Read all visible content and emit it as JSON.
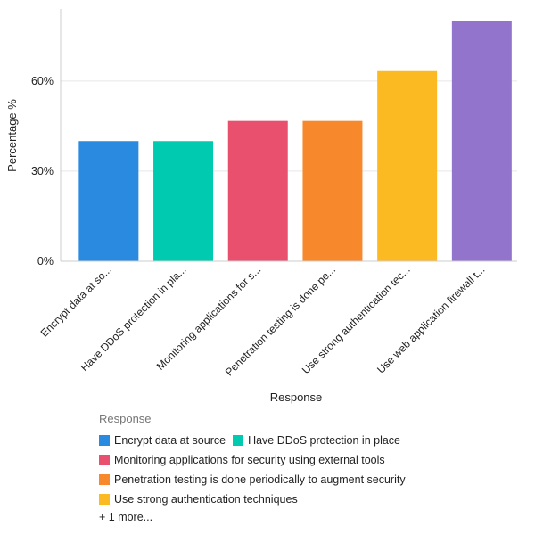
{
  "chart_data": {
    "type": "bar",
    "categories": [
      "Encrypt data at source",
      "Have DDoS protection in place",
      "Monitoring applications for security using external tools",
      "Penetration testing is done periodically to augment security",
      "Use strong authentication techniques",
      "Use web application firewall tools"
    ],
    "tick_labels": [
      "Encrypt data at so...",
      "Have DDoS protection in pla...",
      "Monitoring applications for s...",
      "Penetration testing is done pe...",
      "Use strong authentication tec...",
      "Use web application firewall t..."
    ],
    "values": [
      40,
      40,
      46.7,
      46.7,
      63.3,
      80
    ],
    "colors": [
      "#2a8ae0",
      "#00cbb0",
      "#e8506e",
      "#f8882c",
      "#fcba22",
      "#9374cc"
    ],
    "xlabel": "Response",
    "ylabel": "Percentage %",
    "ylim": [
      0,
      84
    ],
    "yticks": [
      0,
      30,
      60
    ],
    "ytick_labels": [
      "0%",
      "30%",
      "60%"
    ],
    "grid": true,
    "legend": {
      "title": "Response",
      "placement": "bottom",
      "rows": [
        [
          0,
          1
        ],
        [
          2
        ],
        [
          3
        ],
        [
          4
        ]
      ],
      "more": "+ 1 more..."
    }
  }
}
